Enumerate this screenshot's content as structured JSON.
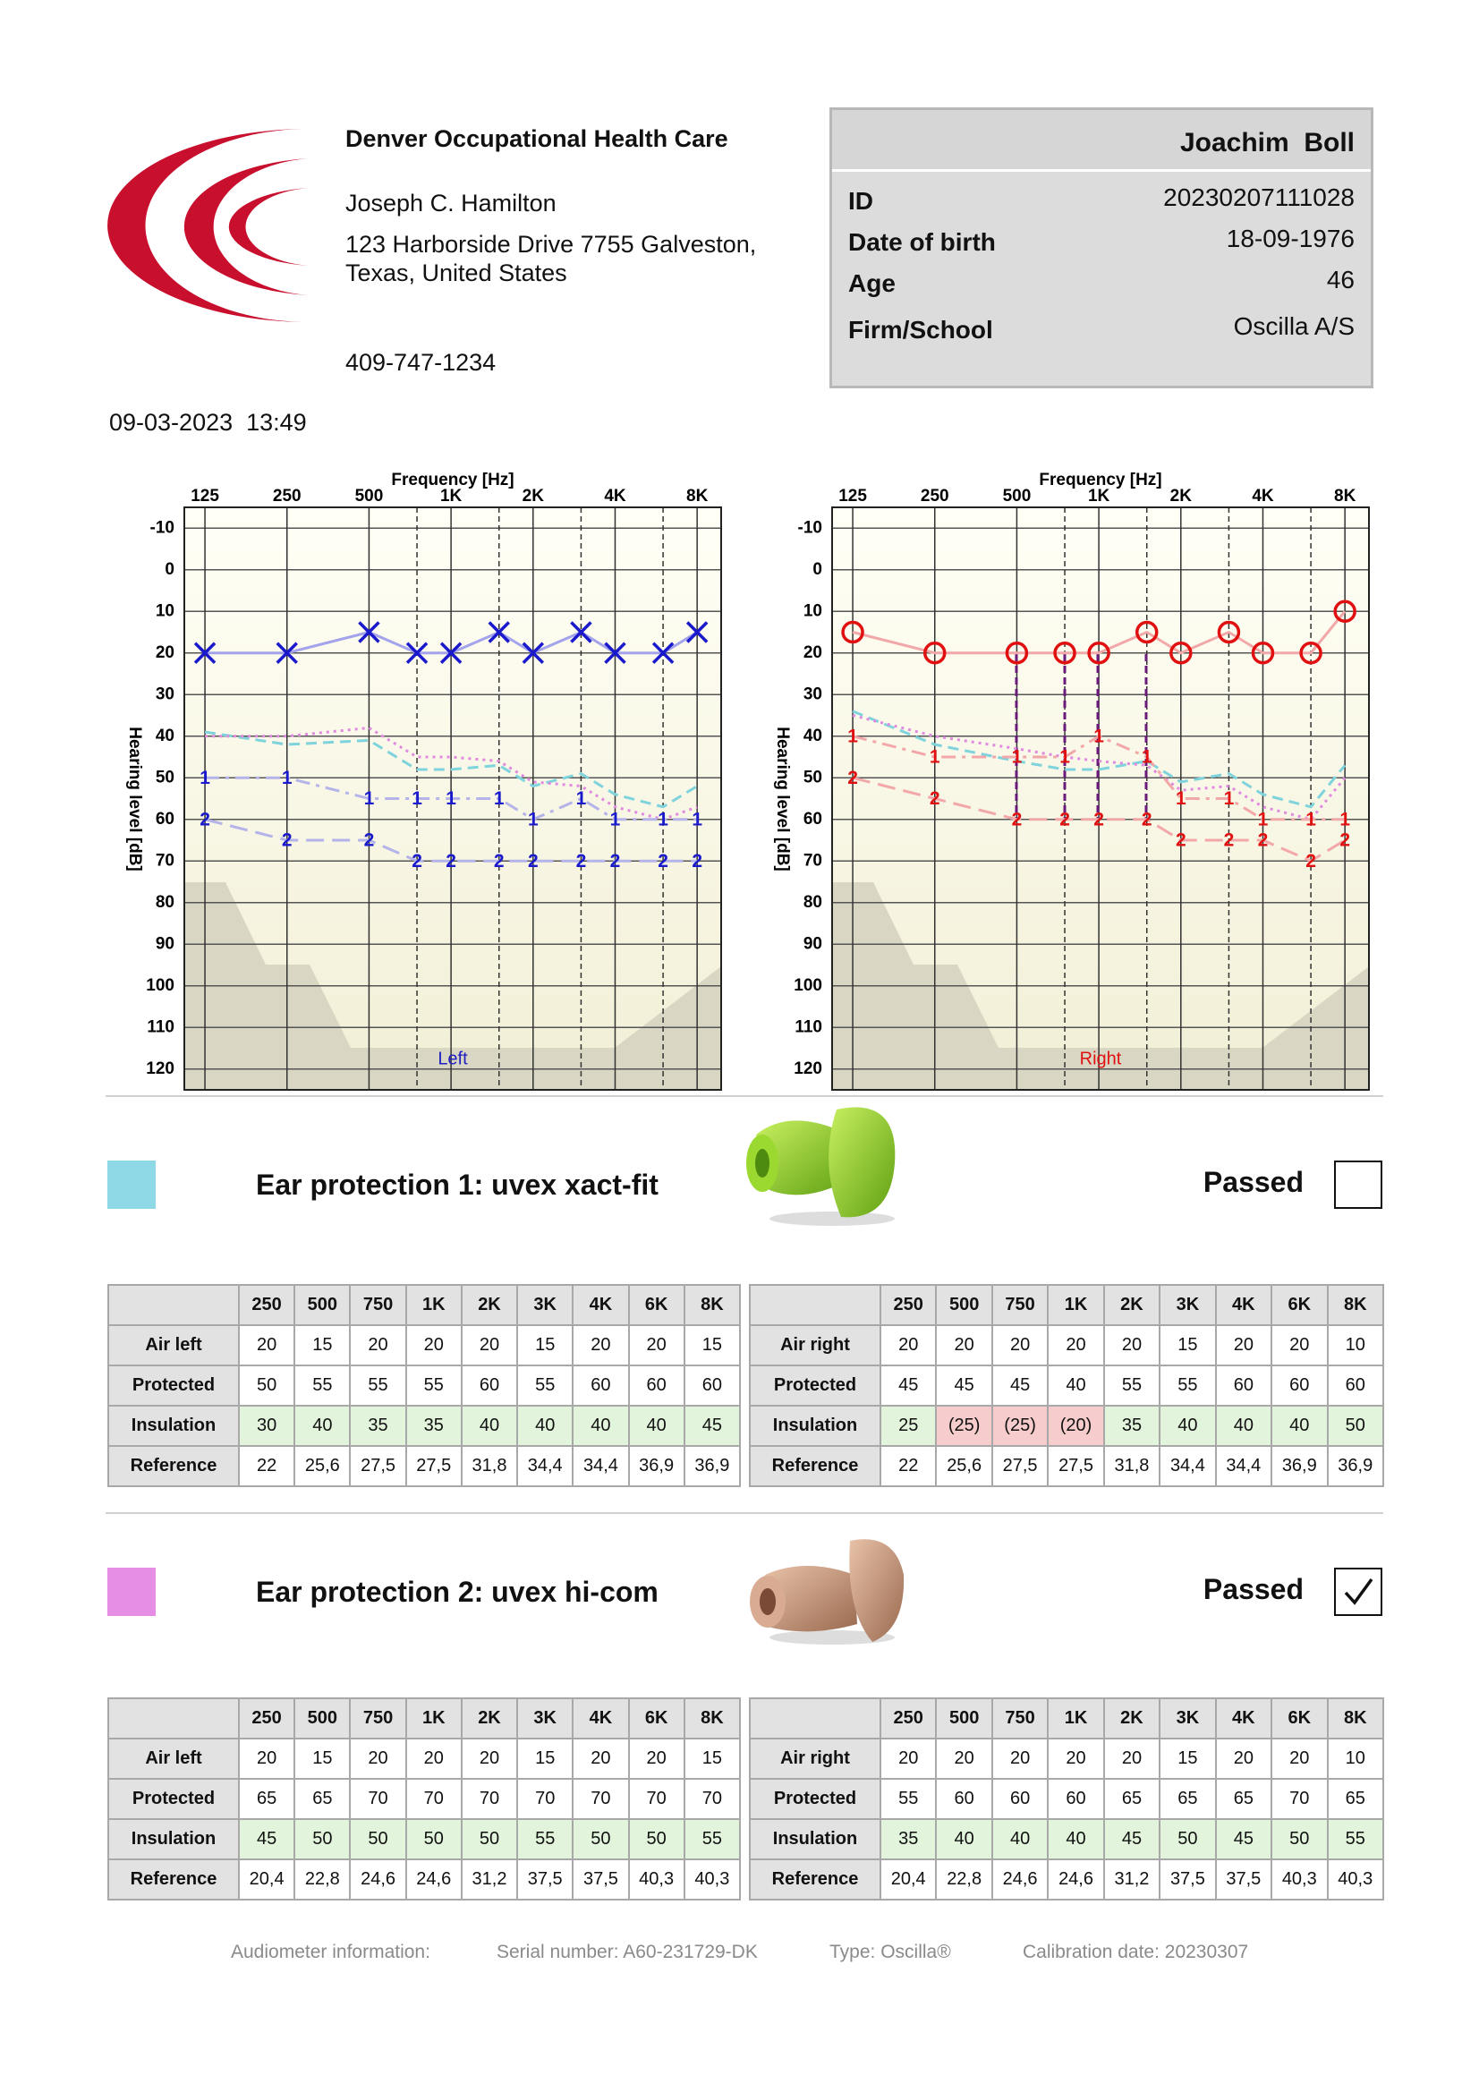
{
  "header": {
    "clinic": "Denver Occupational Health Care",
    "doctor": "Joseph C. Hamilton",
    "address": [
      "123 Harborside Drive 7755 Galveston,",
      "Texas, United States"
    ],
    "phone": "409-747-1234"
  },
  "patient": {
    "name": "Joachim  Boll",
    "fields": [
      {
        "label": "ID",
        "value": "20230207111028"
      },
      {
        "label": "Date of birth",
        "value": "18-09-1976"
      },
      {
        "label": "Age",
        "value": 46
      },
      {
        "label": "Firm/School",
        "value": "Oscilla A/S"
      }
    ]
  },
  "datetime": "09-03-2023  13:49",
  "chart_data": [
    {
      "type": "line",
      "xlabel": "Frequency [Hz]",
      "ylabel": "Hearing level [dB]",
      "ear_label": "Left",
      "ear_color": "#2020c0",
      "xscale": "log",
      "x": [
        125,
        250,
        500,
        750,
        1000,
        1500,
        2000,
        3000,
        4000,
        6000,
        8000
      ],
      "xlim": [
        105,
        9800
      ],
      "xticks": [
        125,
        250,
        500,
        {
          "value": 1000,
          "label": "1K"
        },
        {
          "value": 2000,
          "label": "2K"
        },
        {
          "value": 4000,
          "label": "4K"
        },
        {
          "value": 8000,
          "label": "8K"
        }
      ],
      "minor_xticks": [
        750,
        1500,
        3000,
        6000
      ],
      "ylim": [
        -15,
        125
      ],
      "y_inverted": true,
      "yticks": [
        -10,
        0,
        10,
        20,
        30,
        40,
        50,
        60,
        70,
        80,
        90,
        100,
        110,
        120
      ],
      "grid": true,
      "series": [
        {
          "values": [
            39,
            42,
            41,
            48,
            48,
            47,
            52,
            49,
            54,
            57,
            52
          ],
          "line_color": "#7fd3dc",
          "dash": "dashed",
          "marker": "none"
        },
        {
          "values": [
            40,
            40,
            38,
            45,
            45,
            46,
            51,
            52,
            57,
            60,
            57
          ],
          "line_color": "#e08ae0",
          "dash": "dotted",
          "marker": "none"
        },
        {
          "values": [
            50,
            50,
            55,
            55,
            55,
            55,
            60,
            55,
            60,
            60,
            60
          ],
          "line_color": "#b4b4ea",
          "color": "#1a1acc",
          "dash": "dashdot",
          "marker": "text",
          "marker_text": "1"
        },
        {
          "values": [
            60,
            65,
            65,
            70,
            70,
            70,
            70,
            70,
            70,
            70,
            70
          ],
          "line_color": "#b4b4ea",
          "color": "#1a1acc",
          "dash": "longdash",
          "marker": "text",
          "marker_text": "2"
        },
        {
          "values": [
            20,
            20,
            15,
            20,
            20,
            15,
            20,
            15,
            20,
            20,
            15
          ],
          "line_color": "#a4a4ec",
          "color": "#1a1acc",
          "dash": "solid",
          "marker": "cross"
        }
      ]
    },
    {
      "type": "line",
      "xlabel": "Frequency [Hz]",
      "ylabel": "Hearing level [dB]",
      "ear_label": "Right",
      "ear_color": "#e01010",
      "xscale": "log",
      "x": [
        125,
        250,
        500,
        750,
        1000,
        1500,
        2000,
        3000,
        4000,
        6000,
        8000
      ],
      "xlim": [
        105,
        9800
      ],
      "xticks": [
        125,
        250,
        500,
        {
          "value": 1000,
          "label": "1K"
        },
        {
          "value": 2000,
          "label": "2K"
        },
        {
          "value": 4000,
          "label": "4K"
        },
        {
          "value": 8000,
          "label": "8K"
        }
      ],
      "minor_xticks": [
        750,
        1500,
        3000,
        6000
      ],
      "ylim": [
        -15,
        125
      ],
      "y_inverted": true,
      "yticks": [
        -10,
        0,
        10,
        20,
        30,
        40,
        50,
        60,
        70,
        80,
        90,
        100,
        110,
        120
      ],
      "grid": true,
      "series": [
        {
          "values": [
            34,
            42,
            46,
            48,
            48,
            46,
            51,
            49,
            54,
            57,
            47
          ],
          "line_color": "#7fd3dc",
          "dash": "dashed",
          "marker": "none"
        },
        {
          "values": [
            35,
            40,
            43,
            45,
            46,
            47,
            53,
            52,
            57,
            60,
            50
          ],
          "line_color": "#e08ae0",
          "dash": "dotted",
          "marker": "none"
        },
        {
          "values": [
            40,
            45,
            45,
            45,
            40,
            45,
            55,
            55,
            60,
            60,
            60
          ],
          "line_color": "#f2a8a8",
          "color": "#e01010",
          "dash": "dashdot",
          "marker": "text",
          "marker_text": "1"
        },
        {
          "values": [
            50,
            55,
            60,
            60,
            60,
            60,
            65,
            65,
            65,
            70,
            65
          ],
          "line_color": "#f2a8a8",
          "color": "#e01010",
          "dash": "longdash",
          "marker": "text",
          "marker_text": "2"
        },
        {
          "values": [
            15,
            20,
            20,
            20,
            20,
            15,
            20,
            15,
            20,
            20,
            10
          ],
          "line_color": "#f2a8a8",
          "color": "#e01010",
          "dash": "solid",
          "marker": "circle"
        }
      ]
    }
  ],
  "protections": [
    {
      "title": "Ear protection 1: uvex xact-fit",
      "color": "#8fd8e6",
      "passed_label": "Passed",
      "passed": false,
      "columns": [
        "250",
        "500",
        "750",
        "1K",
        "2K",
        "3K",
        "4K",
        "6K",
        "8K"
      ],
      "highlight_row": 2,
      "tables": [
        {
          "rows": [
            {
              "label": "Air left",
              "cells": [
                "20",
                "15",
                "20",
                "20",
                "20",
                "15",
                "20",
                "20",
                "15"
              ]
            },
            {
              "label": "Protected",
              "cells": [
                "50",
                "55",
                "55",
                "55",
                "60",
                "55",
                "60",
                "60",
                "60"
              ]
            },
            {
              "label": "Insulation",
              "cells": [
                "30",
                "40",
                "35",
                "35",
                "40",
                "40",
                "40",
                "40",
                "45"
              ]
            },
            {
              "label": "Reference",
              "cells": [
                "22",
                "25,6",
                "27,5",
                "27,5",
                "31,8",
                "34,4",
                "34,4",
                "36,9",
                "36,9"
              ]
            }
          ]
        },
        {
          "rows": [
            {
              "label": "Air right",
              "cells": [
                "20",
                "20",
                "20",
                "20",
                "20",
                "15",
                "20",
                "20",
                "10"
              ]
            },
            {
              "label": "Protected",
              "cells": [
                "45",
                "45",
                "45",
                "40",
                "55",
                "55",
                "60",
                "60",
                "60"
              ]
            },
            {
              "label": "Insulation",
              "cells": [
                "25",
                "(25)",
                "(25)",
                "(20)",
                "35",
                "40",
                "40",
                "40",
                "50"
              ]
            },
            {
              "label": "Reference",
              "cells": [
                "22",
                "25,6",
                "27,5",
                "27,5",
                "31,8",
                "34,4",
                "34,4",
                "36,9",
                "36,9"
              ]
            }
          ]
        }
      ]
    },
    {
      "title": "Ear protection 2: uvex hi-com",
      "color": "#e68ee6",
      "passed_label": "Passed",
      "passed": true,
      "columns": [
        "250",
        "500",
        "750",
        "1K",
        "2K",
        "3K",
        "4K",
        "6K",
        "8K"
      ],
      "highlight_row": 2,
      "tables": [
        {
          "rows": [
            {
              "label": "Air left",
              "cells": [
                "20",
                "15",
                "20",
                "20",
                "20",
                "15",
                "20",
                "20",
                "15"
              ]
            },
            {
              "label": "Protected",
              "cells": [
                "65",
                "65",
                "70",
                "70",
                "70",
                "70",
                "70",
                "70",
                "70"
              ]
            },
            {
              "label": "Insulation",
              "cells": [
                "45",
                "50",
                "50",
                "50",
                "50",
                "55",
                "50",
                "50",
                "55"
              ]
            },
            {
              "label": "Reference",
              "cells": [
                "20,4",
                "22,8",
                "24,6",
                "24,6",
                "31,2",
                "37,5",
                "37,5",
                "40,3",
                "40,3"
              ]
            }
          ]
        },
        {
          "rows": [
            {
              "label": "Air right",
              "cells": [
                "20",
                "20",
                "20",
                "20",
                "20",
                "15",
                "20",
                "20",
                "10"
              ]
            },
            {
              "label": "Protected",
              "cells": [
                "55",
                "60",
                "60",
                "60",
                "65",
                "65",
                "65",
                "70",
                "65"
              ]
            },
            {
              "label": "Insulation",
              "cells": [
                "35",
                "40",
                "40",
                "40",
                "45",
                "50",
                "45",
                "50",
                "55"
              ]
            },
            {
              "label": "Reference",
              "cells": [
                "20,4",
                "22,8",
                "24,6",
                "24,6",
                "31,2",
                "37,5",
                "37,5",
                "40,3",
                "40,3"
              ]
            }
          ]
        }
      ]
    }
  ],
  "footer": [
    "Audiometer information:",
    "Serial number: A60-231729-DK",
    "Type: Oscilla®",
    "Calibration date: 20230307"
  ]
}
